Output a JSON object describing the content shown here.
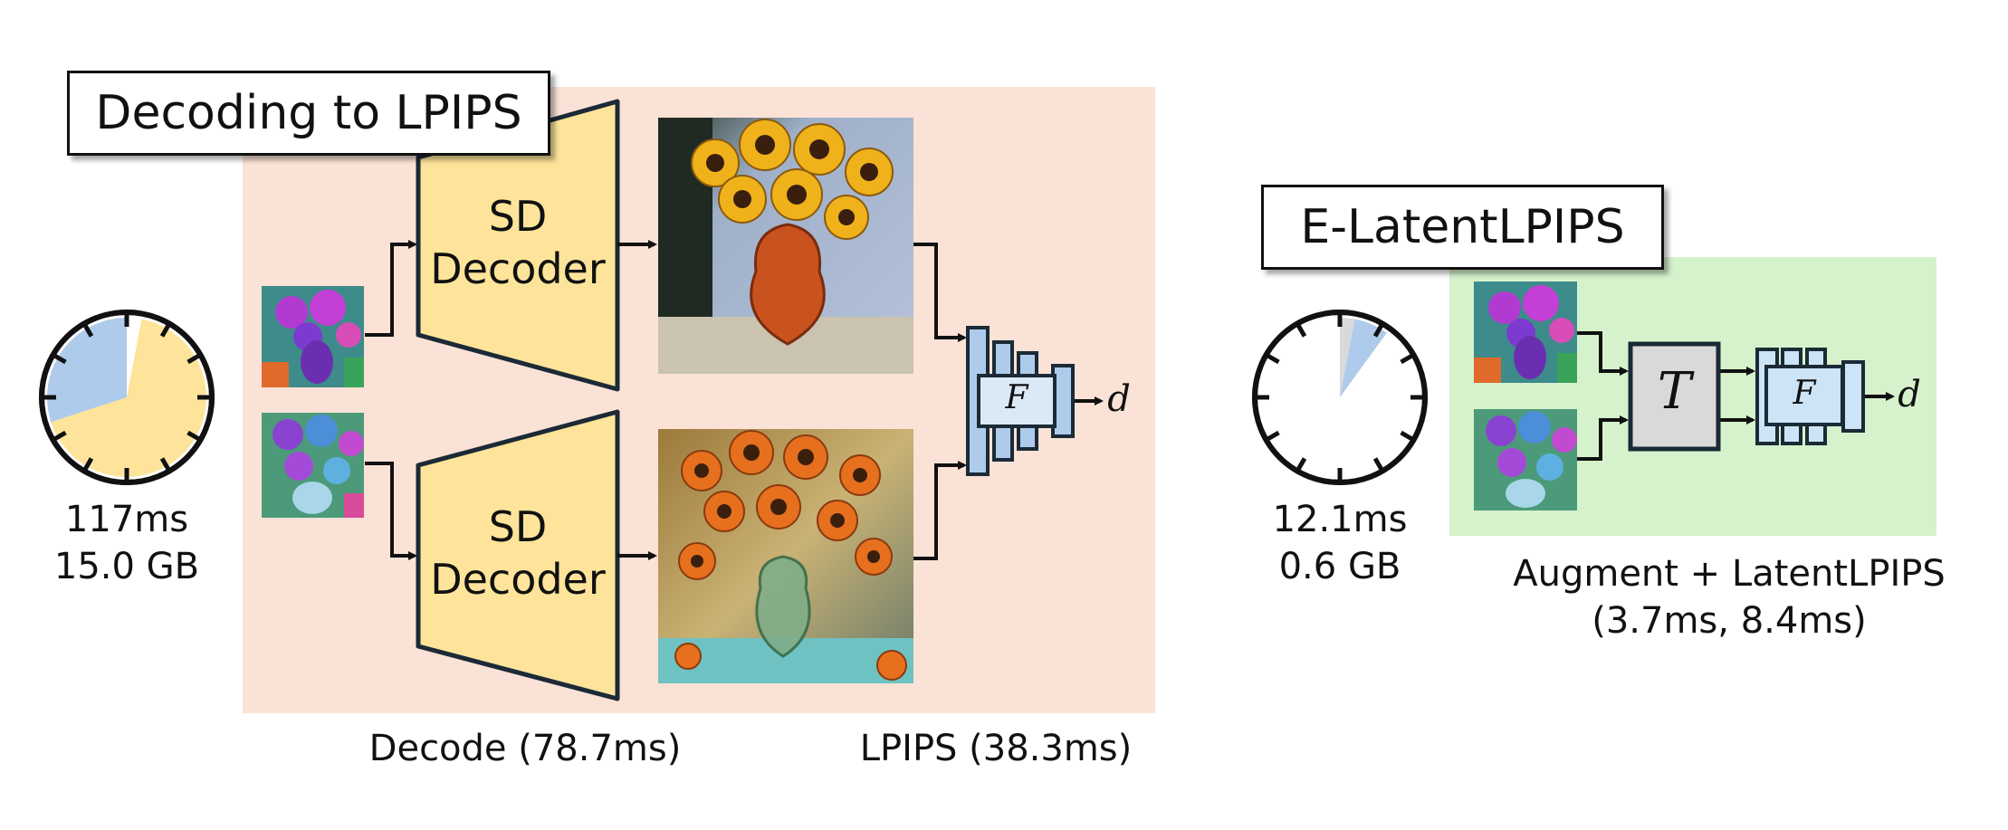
{
  "left_panel": {
    "title": "Decoding to LPIPS",
    "decoder_top": {
      "line1": "SD",
      "line2": "Decoder"
    },
    "decoder_bottom": {
      "line1": "SD",
      "line2": "Decoder"
    },
    "feature_symbol": "F",
    "output_symbol": "d",
    "timer": {
      "time": "117ms",
      "memory": "15.0 GB",
      "fraction_lpips": 0.33,
      "fraction_decode": 0.67
    },
    "caption_decode": "Decode (78.7ms)",
    "caption_lpips": "LPIPS (38.3ms)",
    "colors": {
      "panel": "#fbe2d6",
      "decoder": "#fde49a",
      "lpips_slice": "#aecbec",
      "decode_slice": "#fde49a"
    }
  },
  "right_panel": {
    "title": "E-LatentLPIPS",
    "transform_symbol": "T",
    "feature_symbol": "F",
    "output_symbol": "d",
    "timer": {
      "time": "12.1ms",
      "memory": "0.6 GB",
      "fraction_augment": 0.03,
      "fraction_latent": 0.07
    },
    "caption_line1": "Augment + LatentLPIPS",
    "caption_line2": "(3.7ms, 8.4ms)",
    "colors": {
      "panel": "#d6f2cc",
      "transform": "#d9d9d9",
      "feature": "#cce4f6",
      "augment_slice": "#d9d9d9",
      "latent_slice": "#aecbec"
    }
  }
}
